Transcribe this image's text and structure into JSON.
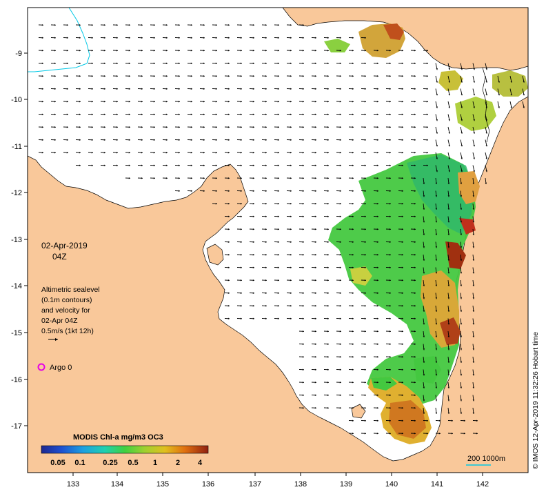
{
  "map": {
    "date_label": "02-Apr-2019",
    "time_label": "04Z",
    "info_lines": [
      "Altimetric sealevel",
      "(0.1m contours)",
      "and velocity for",
      "02-Apr 04Z",
      "0.5m/s (1kt 12h)"
    ],
    "argo_label": "Argo 0",
    "scale_label": "200  1000m",
    "credit": "© IMOS 12-Apr-2019 11:32:26 Hobart time",
    "x_ticks": [
      "133",
      "134",
      "135",
      "136",
      "137",
      "138",
      "139",
      "140",
      "141",
      "142"
    ],
    "y_ticks": [
      "-9",
      "-10",
      "-11",
      "-12",
      "-13",
      "-14",
      "-15",
      "-16",
      "-17"
    ],
    "colorbar": {
      "title": "MODIS Chl-a mg/m3 OC3",
      "ticks": [
        "0.05",
        "0.1",
        "0.25",
        "0.5",
        "1",
        "2",
        "4"
      ]
    },
    "colors": {
      "land": "#f9c89a",
      "sea": "#ffffff",
      "argo": "#e600e6",
      "contour": "#00c8e6",
      "chl_high": "#c0501c",
      "chl_mid": "#d8c83c",
      "chl_low": "#3cc83c"
    }
  }
}
